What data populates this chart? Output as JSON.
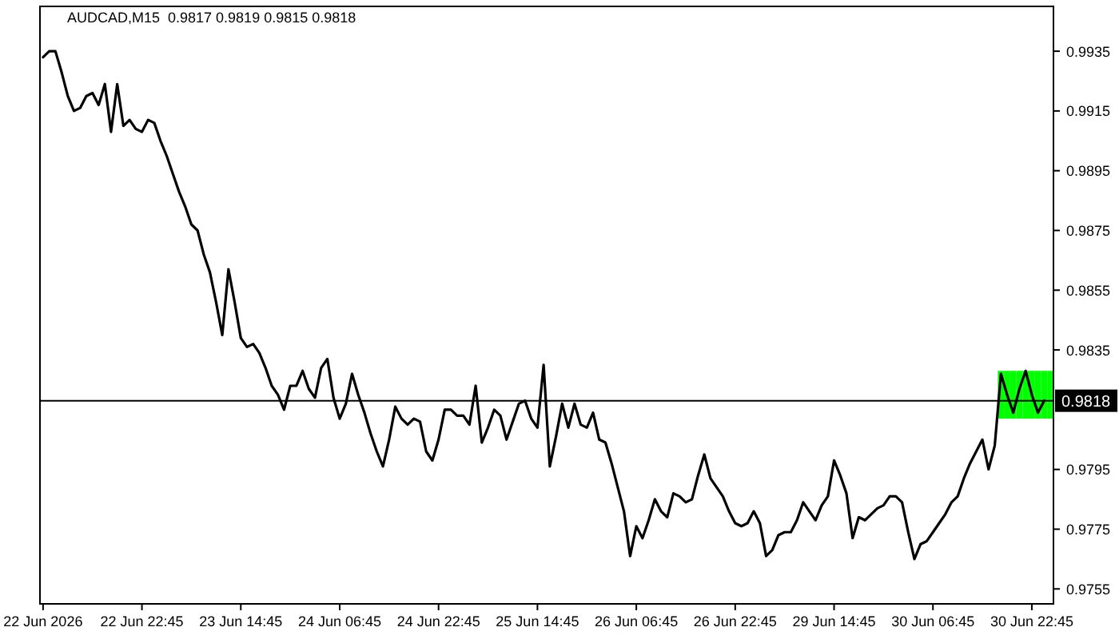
{
  "chart_data": {
    "type": "line",
    "title": "AUDCAD,M15  0.9817 0.9819 0.9815 0.9818",
    "categories": [
      "22 Jun 2026",
      null,
      null,
      null,
      null,
      null,
      null,
      null,
      null,
      null,
      null,
      null,
      null,
      null,
      null,
      null,
      "22 Jun 22:45",
      null,
      null,
      null,
      null,
      null,
      null,
      null,
      null,
      null,
      null,
      null,
      null,
      null,
      null,
      null,
      "23 Jun 14:45",
      null,
      null,
      null,
      null,
      null,
      null,
      null,
      null,
      null,
      null,
      null,
      null,
      null,
      null,
      null,
      "24 Jun 06:45",
      null,
      null,
      null,
      null,
      null,
      null,
      null,
      null,
      null,
      null,
      null,
      null,
      null,
      null,
      null,
      "24 Jun 22:45",
      null,
      null,
      null,
      null,
      null,
      null,
      null,
      null,
      null,
      null,
      null,
      null,
      null,
      null,
      null,
      "25 Jun 14:45",
      null,
      null,
      null,
      null,
      null,
      null,
      null,
      null,
      null,
      null,
      null,
      null,
      null,
      null,
      null,
      "26 Jun 06:45",
      null,
      null,
      null,
      null,
      null,
      null,
      null,
      null,
      null,
      null,
      null,
      null,
      null,
      null,
      null,
      "26 Jun 22:45",
      null,
      null,
      null,
      null,
      null,
      null,
      null,
      null,
      null,
      null,
      null,
      null,
      null,
      null,
      null,
      "29 Jun 14:45",
      null,
      null,
      null,
      null,
      null,
      null,
      null,
      null,
      null,
      null,
      null,
      null,
      null,
      null,
      null,
      "30 Jun 06:45",
      null,
      null,
      null,
      null,
      null,
      null,
      null,
      null,
      null,
      null,
      null,
      null,
      null,
      null,
      null,
      "30 Jun 22:45",
      null,
      null,
      null
    ],
    "series": [
      {
        "type": "bar",
        "color": "#00ff00",
        "values": [
          null,
          null,
          null,
          null,
          null,
          null,
          null,
          null,
          null,
          null,
          null,
          null,
          null,
          null,
          null,
          null,
          null,
          null,
          null,
          null,
          null,
          null,
          null,
          null,
          null,
          null,
          null,
          null,
          null,
          null,
          null,
          null,
          null,
          null,
          null,
          null,
          null,
          null,
          null,
          null,
          null,
          null,
          null,
          null,
          null,
          null,
          null,
          null,
          null,
          null,
          null,
          null,
          null,
          null,
          null,
          null,
          null,
          null,
          null,
          null,
          null,
          null,
          null,
          null,
          null,
          null,
          null,
          null,
          null,
          null,
          null,
          null,
          null,
          null,
          null,
          null,
          null,
          null,
          null,
          null,
          null,
          null,
          null,
          null,
          null,
          null,
          null,
          null,
          null,
          null,
          null,
          null,
          null,
          null,
          null,
          null,
          null,
          null,
          null,
          null,
          null,
          null,
          null,
          null,
          null,
          null,
          null,
          null,
          null,
          null,
          null,
          null,
          null,
          null,
          null,
          null,
          null,
          null,
          null,
          null,
          null,
          null,
          null,
          null,
          null,
          null,
          null,
          null,
          null,
          null,
          null,
          null,
          null,
          null,
          null,
          null,
          null,
          null,
          null,
          null,
          null,
          null,
          null,
          null,
          null,
          null,
          null,
          null,
          null,
          null,
          null,
          null,
          null,
          null,
          null,
          0.0016,
          0.0016,
          0.0016,
          0.0016,
          0.0016,
          0.0016,
          0.0016,
          0.0016,
          0.0016
        ],
        "base": [
          null,
          null,
          null,
          null,
          null,
          null,
          null,
          null,
          null,
          null,
          null,
          null,
          null,
          null,
          null,
          null,
          null,
          null,
          null,
          null,
          null,
          null,
          null,
          null,
          null,
          null,
          null,
          null,
          null,
          null,
          null,
          null,
          null,
          null,
          null,
          null,
          null,
          null,
          null,
          null,
          null,
          null,
          null,
          null,
          null,
          null,
          null,
          null,
          null,
          null,
          null,
          null,
          null,
          null,
          null,
          null,
          null,
          null,
          null,
          null,
          null,
          null,
          null,
          null,
          null,
          null,
          null,
          null,
          null,
          null,
          null,
          null,
          null,
          null,
          null,
          null,
          null,
          null,
          null,
          null,
          null,
          null,
          null,
          null,
          null,
          null,
          null,
          null,
          null,
          null,
          null,
          null,
          null,
          null,
          null,
          null,
          null,
          null,
          null,
          null,
          null,
          null,
          null,
          null,
          null,
          null,
          null,
          null,
          null,
          null,
          null,
          null,
          null,
          null,
          null,
          null,
          null,
          null,
          null,
          null,
          null,
          null,
          null,
          null,
          null,
          null,
          null,
          null,
          null,
          null,
          null,
          null,
          null,
          null,
          null,
          null,
          null,
          null,
          null,
          null,
          null,
          null,
          null,
          null,
          null,
          null,
          null,
          null,
          null,
          null,
          null,
          null,
          null,
          null,
          null,
          0.9812,
          0.9812,
          0.9812,
          0.9812,
          0.9812,
          0.9812,
          0.9812,
          0.9812,
          0.9812
        ]
      },
      {
        "color": "#000000",
        "values": [
          0.9933,
          0.9935,
          0.9935,
          0.9928,
          0.992,
          0.9915,
          0.9916,
          0.992,
          0.9921,
          0.9917,
          0.9924,
          0.9908,
          0.9924,
          0.991,
          0.9912,
          0.9909,
          0.9908,
          0.9912,
          0.9911,
          0.9905,
          0.99,
          0.9894,
          0.9888,
          0.9883,
          0.9877,
          0.9875,
          0.9867,
          0.9861,
          0.9851,
          0.984,
          0.9862,
          0.9851,
          0.9839,
          0.9836,
          0.9837,
          0.9834,
          0.9829,
          0.9823,
          0.982,
          0.9815,
          0.9823,
          0.9823,
          0.9828,
          0.9822,
          0.9819,
          0.9829,
          0.9832,
          0.9819,
          0.9812,
          0.9817,
          0.9827,
          0.982,
          0.9814,
          0.9807,
          0.9801,
          0.9796,
          0.9805,
          0.9816,
          0.9812,
          0.981,
          0.9812,
          0.9811,
          0.9801,
          0.9798,
          0.9805,
          0.9815,
          0.9815,
          0.9813,
          0.9813,
          0.981,
          0.9823,
          0.9804,
          0.9809,
          0.9815,
          0.9813,
          0.9805,
          0.9811,
          0.9817,
          0.9818,
          0.9812,
          0.9809,
          0.983,
          0.9796,
          0.9806,
          0.9817,
          0.9809,
          0.9817,
          0.981,
          0.9809,
          0.9814,
          0.9805,
          0.9804,
          0.9797,
          0.9789,
          0.9781,
          0.9766,
          0.9776,
          0.9772,
          0.9778,
          0.9785,
          0.9781,
          0.9779,
          0.9787,
          0.9786,
          0.9784,
          0.9785,
          0.9793,
          0.98,
          0.9792,
          0.9789,
          0.9786,
          0.9781,
          0.9777,
          0.9776,
          0.9777,
          0.9781,
          0.9777,
          0.9766,
          0.9768,
          0.9773,
          0.9774,
          0.9774,
          0.9778,
          0.9784,
          0.9781,
          0.9778,
          0.9783,
          0.9786,
          0.9798,
          0.9793,
          0.9787,
          0.9772,
          0.9779,
          0.9778,
          0.978,
          0.9782,
          0.9783,
          0.9786,
          0.9786,
          0.9784,
          0.9774,
          0.9765,
          0.977,
          0.9771,
          0.9774,
          0.9777,
          0.978,
          0.9784,
          0.9786,
          0.9792,
          0.9797,
          0.9801,
          0.9805,
          0.9795,
          0.9803,
          0.9827,
          0.982,
          0.9814,
          0.9822,
          0.9828,
          0.982,
          0.9814,
          0.9818,
          null
        ]
      }
    ],
    "ylim": [
      0.975,
      0.995
    ],
    "yticks": [
      0.9755,
      0.9775,
      0.9795,
      0.9835,
      0.9855,
      0.9875,
      0.9895,
      0.9915,
      0.9935
    ],
    "ref_lines": [
      {
        "axis": "y",
        "value": 0.9818,
        "label": "0.9818",
        "color": "#000000"
      }
    ]
  }
}
